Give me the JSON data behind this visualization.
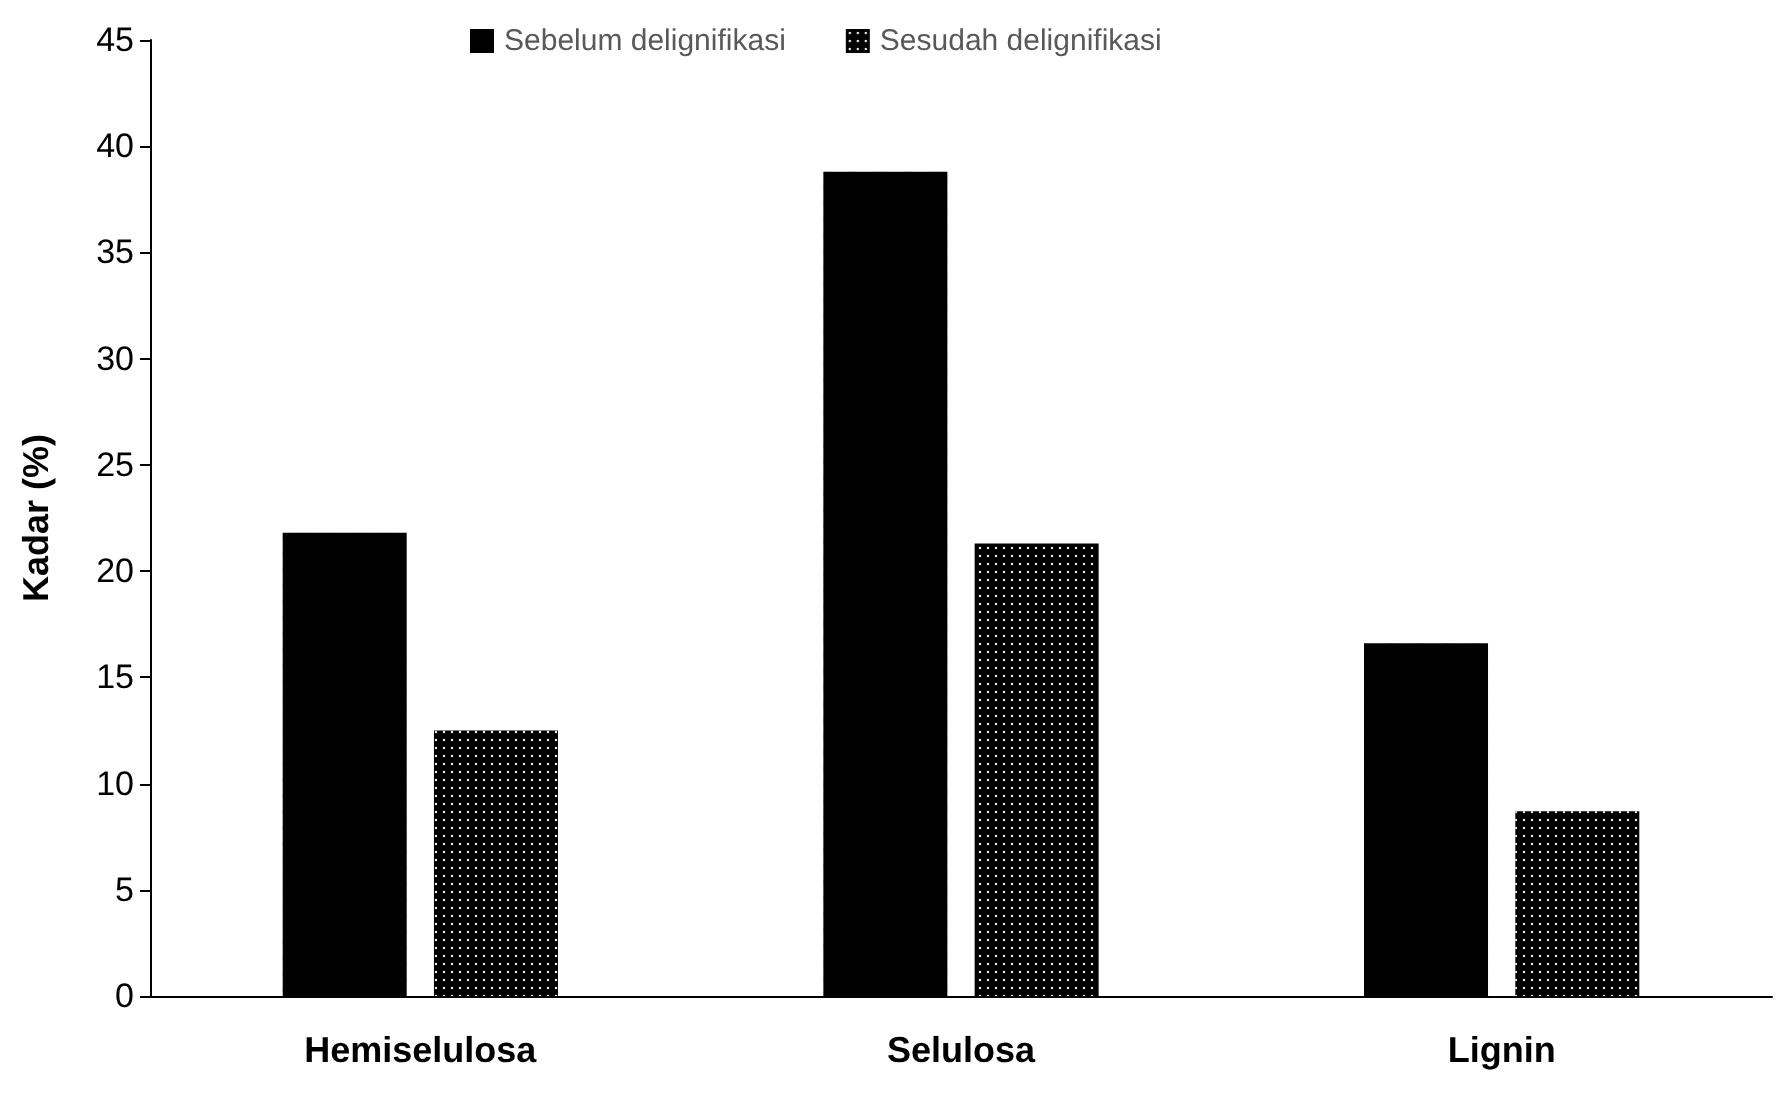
{
  "chart_data": {
    "type": "bar",
    "ylabel": "Kadar (%)",
    "categories": [
      "Hemiselulosa",
      "Selulosa",
      "Lignin"
    ],
    "series": [
      {
        "name": "Sebelum delignifikasi",
        "color": "#000000",
        "values": [
          21.8,
          38.8,
          16.6
        ]
      },
      {
        "name": "Sesudah delignifikasi",
        "color": "#000000",
        "values": [
          12.5,
          21.3,
          8.7
        ]
      }
    ],
    "ylim": [
      0,
      45
    ],
    "yticks": [
      0,
      5,
      10,
      15,
      20,
      25,
      30,
      35,
      40,
      45
    ],
    "grid": false,
    "legend": "top"
  }
}
